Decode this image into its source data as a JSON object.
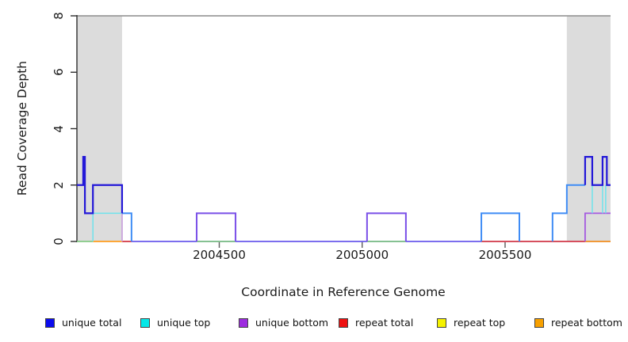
{
  "figure": {
    "y_axis": {
      "label": "Read Coverage Depth",
      "ticks": [
        0,
        2,
        4,
        6,
        8
      ],
      "tick_labels": [
        "0",
        "2",
        "4",
        "6",
        "8"
      ],
      "range": [
        0,
        8
      ]
    },
    "x_axis": {
      "label": "Coordinate in Reference Genome",
      "ticks": [
        2004500,
        2005000,
        2005500
      ],
      "tick_labels": [
        "2004500",
        "2005000",
        "2005500"
      ],
      "range": [
        2004002,
        2005869
      ]
    },
    "legend": [
      {
        "label": "unique total",
        "color": "#0b0bee"
      },
      {
        "label": "unique top",
        "color": "#06e7e7"
      },
      {
        "label": "unique bottom",
        "color": "#9d2bdf"
      },
      {
        "label": "repeat total",
        "color": "#ee1111"
      },
      {
        "label": "repeat top",
        "color": "#f5f200"
      },
      {
        "label": "repeat bottom",
        "color": "#f7a000"
      }
    ],
    "chart_data": {
      "type": "line",
      "title": "",
      "xlabel": "Coordinate in Reference Genome",
      "ylabel": "Read Coverage Depth",
      "x_range": [
        2004002,
        2005869
      ],
      "ylim": [
        0,
        8
      ],
      "grid": false,
      "frame_top_y": 8,
      "shaded_regions": [
        {
          "x0": 2004002,
          "x1": 2004160
        },
        {
          "x0": 2005716,
          "x1": 2005869
        }
      ],
      "colors": {
        "navy": "#2318d8",
        "bright_blue": "#3f8cf5",
        "cyan": "#6fe3ec",
        "purple": "#7a4fe8",
        "orchid": "#a55ae0",
        "lavender": "#cba4de",
        "violet_blend": "#6a5aec",
        "green_blend": "#85ca85",
        "orange": "#ff9d1e",
        "red": "#e04848",
        "frame": "#8c8c8c",
        "axis": "#2e2e2e",
        "shade": "#dcdcdc"
      },
      "polylines": [
        {
          "name": "baseline-zero",
          "color": "violet_blend",
          "width": 1.8,
          "points": [
            [
              2004160,
              0
            ],
            [
              2005869,
              0
            ]
          ]
        },
        {
          "name": "green-baseline-1",
          "color": "green_blend",
          "width": 1.8,
          "points": [
            [
              2004002,
              0
            ],
            [
              2004058,
              0
            ]
          ]
        },
        {
          "name": "green-baseline-2",
          "color": "green_blend",
          "width": 1.8,
          "points": [
            [
              2004421,
              0
            ],
            [
              2004557,
              0
            ]
          ]
        },
        {
          "name": "green-baseline-3",
          "color": "green_blend",
          "width": 1.8,
          "points": [
            [
              2005017,
              0
            ],
            [
              2005153,
              0
            ]
          ]
        },
        {
          "name": "repeat-bottom-left",
          "color": "orange",
          "width": 1.8,
          "points": [
            [
              2004058,
              0
            ],
            [
              2004160,
              0
            ]
          ]
        },
        {
          "name": "repeat-bottom-right",
          "color": "orange",
          "width": 1.8,
          "points": [
            [
              2005780,
              0
            ],
            [
              2005869,
              0
            ]
          ]
        },
        {
          "name": "repeat-total-left",
          "color": "red",
          "width": 1.8,
          "points": [
            [
              2004160,
              0
            ],
            [
              2004193,
              0
            ]
          ]
        },
        {
          "name": "repeat-total-mid",
          "color": "red",
          "width": 1.8,
          "points": [
            [
              2005417,
              0
            ],
            [
              2005780,
              0
            ]
          ]
        },
        {
          "name": "unique-top-left",
          "color": "cyan",
          "width": 1.5,
          "points": [
            [
              2004058,
              0
            ],
            [
              2004058,
              1
            ],
            [
              2004160,
              1
            ]
          ]
        },
        {
          "name": "unique-bottom-drop",
          "color": "lavender",
          "width": 1.8,
          "points": [
            [
              2004160,
              2
            ],
            [
              2004160,
              0
            ]
          ]
        },
        {
          "name": "unique-bottom-box-1",
          "color": "purple",
          "width": 2.0,
          "points": [
            [
              2004421,
              0
            ],
            [
              2004421,
              1
            ],
            [
              2004557,
              1
            ],
            [
              2004557,
              0
            ]
          ]
        },
        {
          "name": "unique-bottom-box-2",
          "color": "purple",
          "width": 2.0,
          "points": [
            [
              2005017,
              0
            ],
            [
              2005017,
              1
            ],
            [
              2005153,
              1
            ],
            [
              2005153,
              0
            ]
          ]
        },
        {
          "name": "unique-bottom-right",
          "color": "orchid",
          "width": 1.8,
          "points": [
            [
              2005780,
              0
            ],
            [
              2005780,
              1
            ],
            [
              2005869,
              1
            ]
          ]
        },
        {
          "name": "unique-top-box",
          "color": "bright_blue",
          "width": 2.0,
          "points": [
            [
              2005417,
              0
            ],
            [
              2005417,
              1
            ],
            [
              2005550,
              1
            ],
            [
              2005550,
              0
            ]
          ]
        },
        {
          "name": "unique-top-left-step",
          "color": "bright_blue",
          "width": 2.0,
          "points": [
            [
              2004160,
              1
            ],
            [
              2004193,
              1
            ],
            [
              2004193,
              0
            ]
          ]
        },
        {
          "name": "unique-top-right-step",
          "color": "bright_blue",
          "width": 2.0,
          "points": [
            [
              2005666,
              0
            ],
            [
              2005666,
              1
            ],
            [
              2005716,
              1
            ],
            [
              2005716,
              2
            ],
            [
              2005780,
              2
            ]
          ]
        },
        {
          "name": "unique-top-drop-1",
          "color": "cyan",
          "width": 1.5,
          "points": [
            [
              2005805,
              2
            ],
            [
              2005805,
              1
            ]
          ]
        },
        {
          "name": "unique-top-drop-2",
          "color": "cyan",
          "width": 1.5,
          "points": [
            [
              2005841,
              2
            ],
            [
              2005841,
              1
            ]
          ]
        },
        {
          "name": "unique-top-drop-3",
          "color": "cyan",
          "width": 1.5,
          "points": [
            [
              2005852,
              2
            ],
            [
              2005852,
              1
            ]
          ]
        },
        {
          "name": "unique-total-left",
          "color": "navy",
          "width": 2.2,
          "points": [
            [
              2004002,
              2
            ],
            [
              2004024,
              2
            ],
            [
              2004024,
              3
            ],
            [
              2004030,
              3
            ],
            [
              2004030,
              1
            ],
            [
              2004058,
              1
            ],
            [
              2004058,
              2
            ],
            [
              2004160,
              2
            ],
            [
              2004160,
              1
            ]
          ]
        },
        {
          "name": "unique-total-right",
          "color": "navy",
          "width": 2.2,
          "points": [
            [
              2005780,
              2
            ],
            [
              2005780,
              3
            ],
            [
              2005805,
              3
            ],
            [
              2005805,
              2
            ],
            [
              2005841,
              2
            ],
            [
              2005841,
              3
            ],
            [
              2005856,
              3
            ],
            [
              2005856,
              2
            ],
            [
              2005869,
              2
            ]
          ]
        }
      ]
    }
  }
}
